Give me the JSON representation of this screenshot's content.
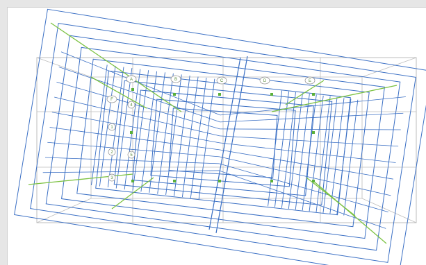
{
  "colors": {
    "background": "#e6e6e6",
    "canvas": "#ffffff",
    "undeformed_grid": "#bdbdbd",
    "deformed_members": "#3a6fc4",
    "diagonal_braces": "#7cc242",
    "nodes": "#5ab03a",
    "grid_bubble": "#8c8c8c"
  },
  "grid_axes": {
    "lettered": [
      "A",
      "B",
      "C",
      "D",
      "E",
      "F"
    ],
    "numbered": [
      "1",
      "2",
      "3",
      "4",
      "5"
    ]
  },
  "view": {
    "description_icon": "structural-wireframe"
  }
}
